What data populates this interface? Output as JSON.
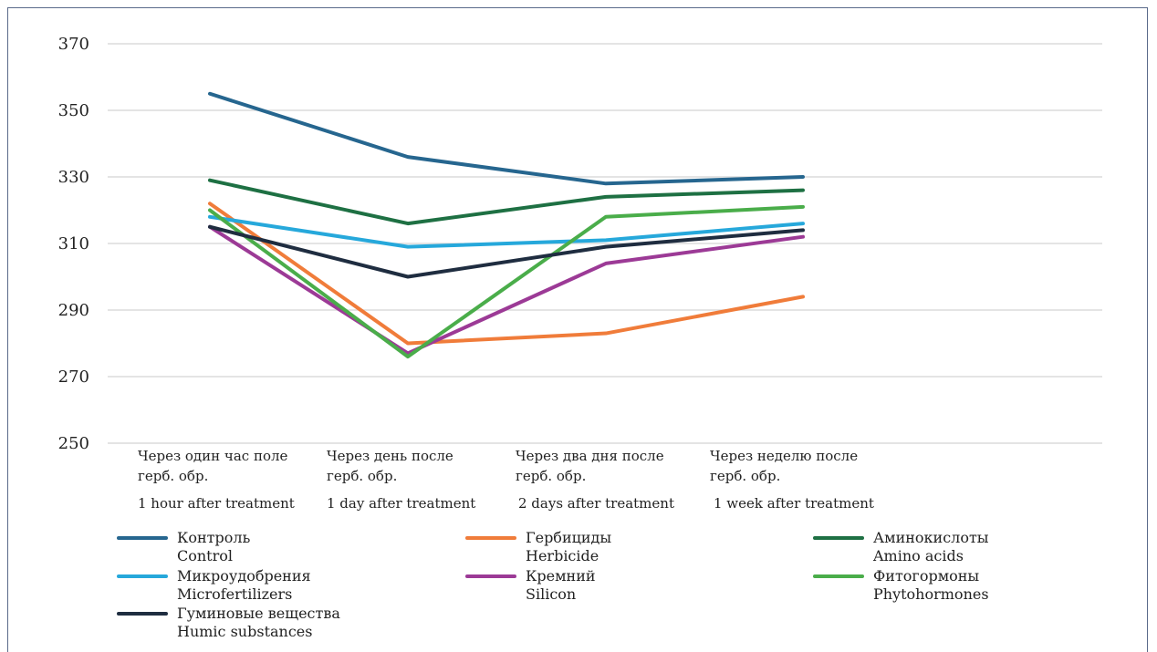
{
  "chart_data": {
    "type": "line",
    "ylim": [
      250,
      370
    ],
    "yticks": [
      250,
      270,
      290,
      310,
      330,
      350,
      370
    ],
    "grid": true,
    "legend_position": "bottom",
    "categories": [
      {
        "ru": [
          "Через один час поле",
          "герб. обр."
        ],
        "en": "1 hour after treatment"
      },
      {
        "ru": [
          "Через день после",
          "герб. обр."
        ],
        "en": "1 day after treatment"
      },
      {
        "ru": [
          "Через два дня после",
          "герб. обр."
        ],
        "en": "2 days after treatment"
      },
      {
        "ru": [
          "Через неделю после",
          "герб. обр."
        ],
        "en": "1 week after treatment"
      }
    ],
    "series": [
      {
        "name_ru": "Контроль",
        "name_en": "Control",
        "color": "#26668f",
        "values": [
          355,
          336,
          328,
          330
        ]
      },
      {
        "name_ru": "Гербициды",
        "name_en": "Herbicide",
        "color": "#f07c3a",
        "values": [
          322,
          280,
          283,
          294
        ]
      },
      {
        "name_ru": "Аминокислоты",
        "name_en": "Amino acids",
        "color": "#1e7043",
        "values": [
          329,
          316,
          324,
          326
        ]
      },
      {
        "name_ru": "Микроудобрения",
        "name_en": "Microfertilizers",
        "color": "#26a8db",
        "values": [
          318,
          309,
          311,
          316
        ]
      },
      {
        "name_ru": "Кремний",
        "name_en": "Silicon",
        "color": "#9c3a96",
        "values": [
          315,
          277,
          304,
          312
        ]
      },
      {
        "name_ru": "Фитогормоны",
        "name_en": "Phytohormones",
        "color": "#4aad4a",
        "values": [
          320,
          276,
          318,
          321
        ]
      },
      {
        "name_ru": "Гуминовые вещества",
        "name_en": "Humic substances",
        "color": "#1f2d40",
        "values": [
          315,
          300,
          309,
          314
        ]
      }
    ]
  }
}
